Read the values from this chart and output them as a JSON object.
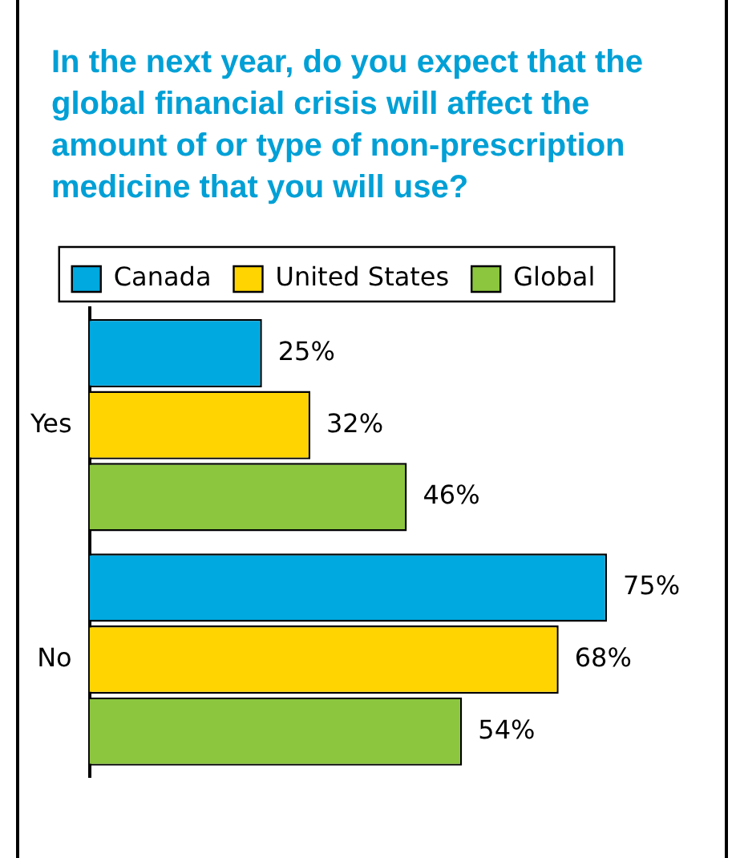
{
  "chart_data": {
    "type": "bar",
    "orientation": "horizontal",
    "title": "In the next year, do you expect that the global financial crisis will affect the amount of or type of non-prescription medicine that you will use?",
    "categories": [
      "Yes",
      "No"
    ],
    "series": [
      {
        "name": "Canada",
        "color": "#00a9e0",
        "values": [
          25,
          75
        ],
        "value_labels": [
          "25%",
          "75%"
        ]
      },
      {
        "name": "United States",
        "color": "#ffd400",
        "values": [
          32,
          68
        ],
        "value_labels": [
          "32%",
          "68%"
        ]
      },
      {
        "name": "Global",
        "color": "#8cc63f",
        "values": [
          46,
          54
        ],
        "value_labels": [
          "46%",
          "54%"
        ]
      }
    ],
    "legend": "top"
  }
}
